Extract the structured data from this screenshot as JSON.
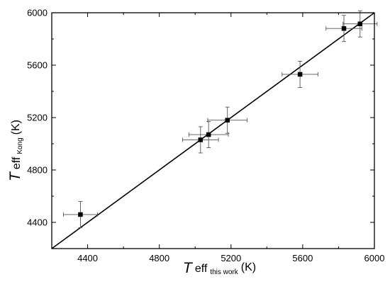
{
  "chart_data": {
    "type": "scatter",
    "xlim": [
      4200,
      6000
    ],
    "ylim": [
      4200,
      6000
    ],
    "x_ticks": [
      4400,
      4800,
      5200,
      5600,
      6000
    ],
    "y_ticks": [
      4400,
      4800,
      5200,
      5600,
      6000
    ],
    "grid": false,
    "reference_line": "y = x",
    "xlabel": {
      "symbol": "T",
      "subscript": "eff",
      "sub_sub": "this work",
      "unit": "(K)"
    },
    "ylabel": {
      "symbol": "T",
      "subscript": "eff",
      "sub_sub": "Kong",
      "unit": "(K)"
    },
    "points": [
      {
        "x": 4360,
        "y": 4460,
        "xerr": 95,
        "yerr": 100
      },
      {
        "x": 5030,
        "y": 5030,
        "xerr": 100,
        "yerr": 100
      },
      {
        "x": 5075,
        "y": 5070,
        "xerr": 110,
        "yerr": 100
      },
      {
        "x": 5180,
        "y": 5180,
        "xerr": 110,
        "yerr": 100
      },
      {
        "x": 5585,
        "y": 5530,
        "xerr": 100,
        "yerr": 100
      },
      {
        "x": 5830,
        "y": 5880,
        "xerr": 100,
        "yerr": 100
      },
      {
        "x": 5920,
        "y": 5915,
        "xerr": 95,
        "yerr": 100
      }
    ]
  }
}
